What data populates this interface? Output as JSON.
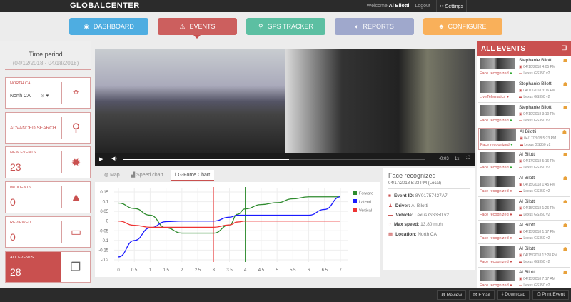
{
  "header": {
    "logo": "GLOBALCENTER",
    "welcome": "Welcome",
    "user": "Al Bilotti",
    "logout": "Logout",
    "settings": "Settings"
  },
  "nav": [
    {
      "label": "DASHBOARD",
      "color": "#3ea7e0",
      "icon": "dashboard-icon"
    },
    {
      "label": "EVENTS",
      "color": "#c9504f",
      "icon": "warning-icon"
    },
    {
      "label": "GPS TRACKER",
      "color": "#4dbb9a",
      "icon": "pin-icon"
    },
    {
      "label": "REPORTS",
      "color": "#97a1c9",
      "icon": "reports-icon"
    },
    {
      "label": "CONFIGURE",
      "color": "#fbaa4b",
      "icon": "configure-icon"
    }
  ],
  "sidebar": {
    "time_title": "Time period",
    "time_range": "(04/12/2018 - 04/18/2018)",
    "region_label": "NORTH CA",
    "region_value": "North CA",
    "advanced": "ADVANCED SEARCH",
    "new_label": "NEW EVENTS",
    "new_count": "23",
    "incidents_label": "INCIDENTS",
    "incidents_count": "0",
    "reviewed_label": "REVIEWED",
    "reviewed_count": "0",
    "all_label": "ALL EVENTS",
    "all_count": "28"
  },
  "video": {
    "time": "-0:03",
    "speed": "1x",
    "progress": 0.55
  },
  "tabs": [
    {
      "label": "Map"
    },
    {
      "label": "Speed chart"
    },
    {
      "label": "G-Force Chart",
      "active": true
    }
  ],
  "chart_data": {
    "type": "line",
    "x": [
      0,
      0.5,
      1,
      1.5,
      2,
      2.5,
      3,
      3.5,
      3.75,
      4,
      4.5,
      5,
      5.5,
      6,
      6.5,
      7
    ],
    "series": [
      {
        "name": "Forward",
        "color": "#2e8b2e",
        "values": [
          0.093,
          0.065,
          0.03,
          -0.035,
          -0.062,
          -0.062,
          -0.062,
          -0.02,
          0.035,
          0.063,
          0.085,
          0.095,
          0.115,
          0.125,
          0.125,
          0.125
        ]
      },
      {
        "name": "Lateral",
        "color": "#1a1aff",
        "values": [
          -0.185,
          -0.1,
          -0.035,
          -0.003,
          0,
          0,
          0,
          0.02,
          0.03,
          0.03,
          0.03,
          0.03,
          0.03,
          0.03,
          0.06,
          0.125
        ]
      },
      {
        "name": "Vertical",
        "color": "#ee3333",
        "values": [
          0,
          -0.022,
          -0.032,
          -0.032,
          -0.032,
          -0.032,
          -0.032,
          -0.02,
          -0.005,
          0,
          0,
          0,
          0,
          0,
          0,
          0
        ]
      }
    ],
    "xticks": [
      "0",
      "0.5",
      "1",
      "1.5",
      "2",
      "2.5",
      "3",
      "3.5",
      "4",
      "4.5",
      "5",
      "5.5",
      "6",
      "6.5",
      "7"
    ],
    "yticks": [
      "0.15",
      "0.1",
      "0.05",
      "0",
      "-0.05",
      "-0.1",
      "-0.15",
      "-0.2"
    ],
    "xlim": [
      0,
      7
    ],
    "ylim": [
      -0.2,
      0.15
    ],
    "markers": [
      {
        "x": 3,
        "color": "#f08080"
      },
      {
        "x": 4,
        "color": "#2e8b2e"
      }
    ],
    "grid": true,
    "legend": "right"
  },
  "info": {
    "title": "Face recognized",
    "date": "04/17/2018 5:23 PM (Local)",
    "rows": [
      {
        "k": "Event ID:",
        "v": "8Y01757427A7"
      },
      {
        "k": "Driver:",
        "v": "Al Bilotti"
      },
      {
        "k": "Vehicle:",
        "v": "Lexus GS350 v2"
      },
      {
        "k": "Max speed:",
        "v": "13.80 mph"
      },
      {
        "k": "Location:",
        "v": "North CA"
      }
    ]
  },
  "events_title": "ALL EVENTS",
  "events": [
    {
      "name": "Stephanie Bilotti",
      "date": "04/10/2018 4:05 PM",
      "vehicle": "Lexus GS350 v2",
      "type": "Face recognized"
    },
    {
      "name": "Stephanie Bilotti",
      "date": "04/10/2018 3:16 PM",
      "vehicle": "Lexus GS350 v2",
      "type": "LiveTelematics"
    },
    {
      "name": "Stephanie Bilotti",
      "date": "04/10/2018 3:10 PM",
      "vehicle": "Lexus GS350 v2",
      "type": "Face recognized"
    },
    {
      "name": "Al Bilotti",
      "date": "04/17/2018 5:23 PM",
      "vehicle": "Lexus GS350 v2",
      "type": "Face recognized",
      "selected": true
    },
    {
      "name": "Al Bilotti",
      "date": "04/17/2018 5:16 PM",
      "vehicle": "Lexus GS350 v2",
      "type": "Face recognized"
    },
    {
      "name": "Al Bilotti",
      "date": "04/15/2018 1:45 PM",
      "vehicle": "Lexus GS350 v2",
      "type": "Face recognized"
    },
    {
      "name": "Al Bilotti",
      "date": "04/15/2018 1:26 PM",
      "vehicle": "Lexus GS350 v2",
      "type": "Face recognized"
    },
    {
      "name": "Al Bilotti",
      "date": "04/15/2018 1:17 PM",
      "vehicle": "Lexus GS350 v2",
      "type": "Face recognized"
    },
    {
      "name": "Al Bilotti",
      "date": "04/15/2018 12:28 PM",
      "vehicle": "Lexus GS350 v2",
      "type": "Face recognized"
    },
    {
      "name": "Al Bilotti",
      "date": "04/15/2018 7:17 AM",
      "vehicle": "Lexus GS350 v2",
      "type": "Face recognized"
    },
    {
      "name": "Al Bilotti",
      "date": "",
      "vehicle": "",
      "type": ""
    }
  ],
  "footer": {
    "review": "Review",
    "email": "Email",
    "download": "Download",
    "print": "Print Event"
  }
}
